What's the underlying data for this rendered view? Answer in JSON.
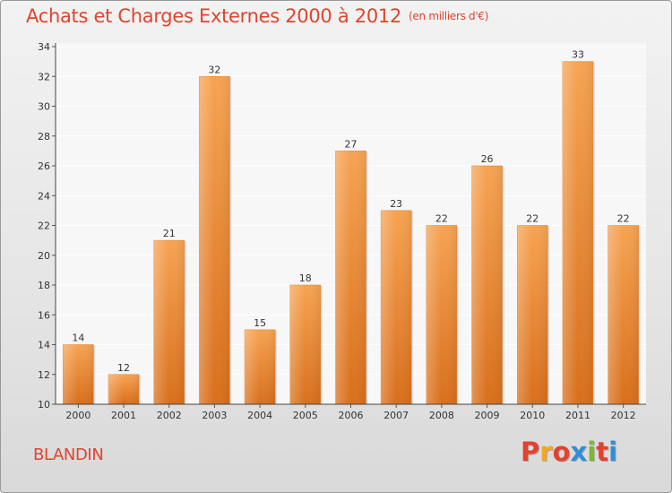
{
  "header": {
    "title": "Achats et Charges Externes 2000 à 2012",
    "subtitle": "(en milliers d'€)"
  },
  "footer": {
    "place": "BLANDIN",
    "logo_text": "Proxiti"
  },
  "colors": {
    "title": "#e0442f",
    "bar_top": "#f6a352",
    "bar_bottom": "#d86f1c",
    "logo": [
      "#e5412f",
      "#f5a623",
      "#e5412f",
      "#2e8fd8",
      "#7ab733",
      "#e5412f",
      "#2e8fd8"
    ]
  },
  "chart_data": {
    "type": "bar",
    "title": "Achats et Charges Externes 2000 à 2012",
    "subtitle": "(en milliers d'€)",
    "categories": [
      "2000",
      "2001",
      "2002",
      "2003",
      "2004",
      "2005",
      "2006",
      "2007",
      "2008",
      "2009",
      "2010",
      "2011",
      "2012"
    ],
    "values": [
      14,
      12,
      21,
      32,
      15,
      18,
      27,
      23,
      22,
      26,
      22,
      33,
      22
    ],
    "ylim": [
      10,
      34
    ],
    "yticks": [
      10,
      12,
      14,
      16,
      18,
      20,
      22,
      24,
      26,
      28,
      30,
      32,
      34
    ],
    "grid": true,
    "legend": "none"
  }
}
